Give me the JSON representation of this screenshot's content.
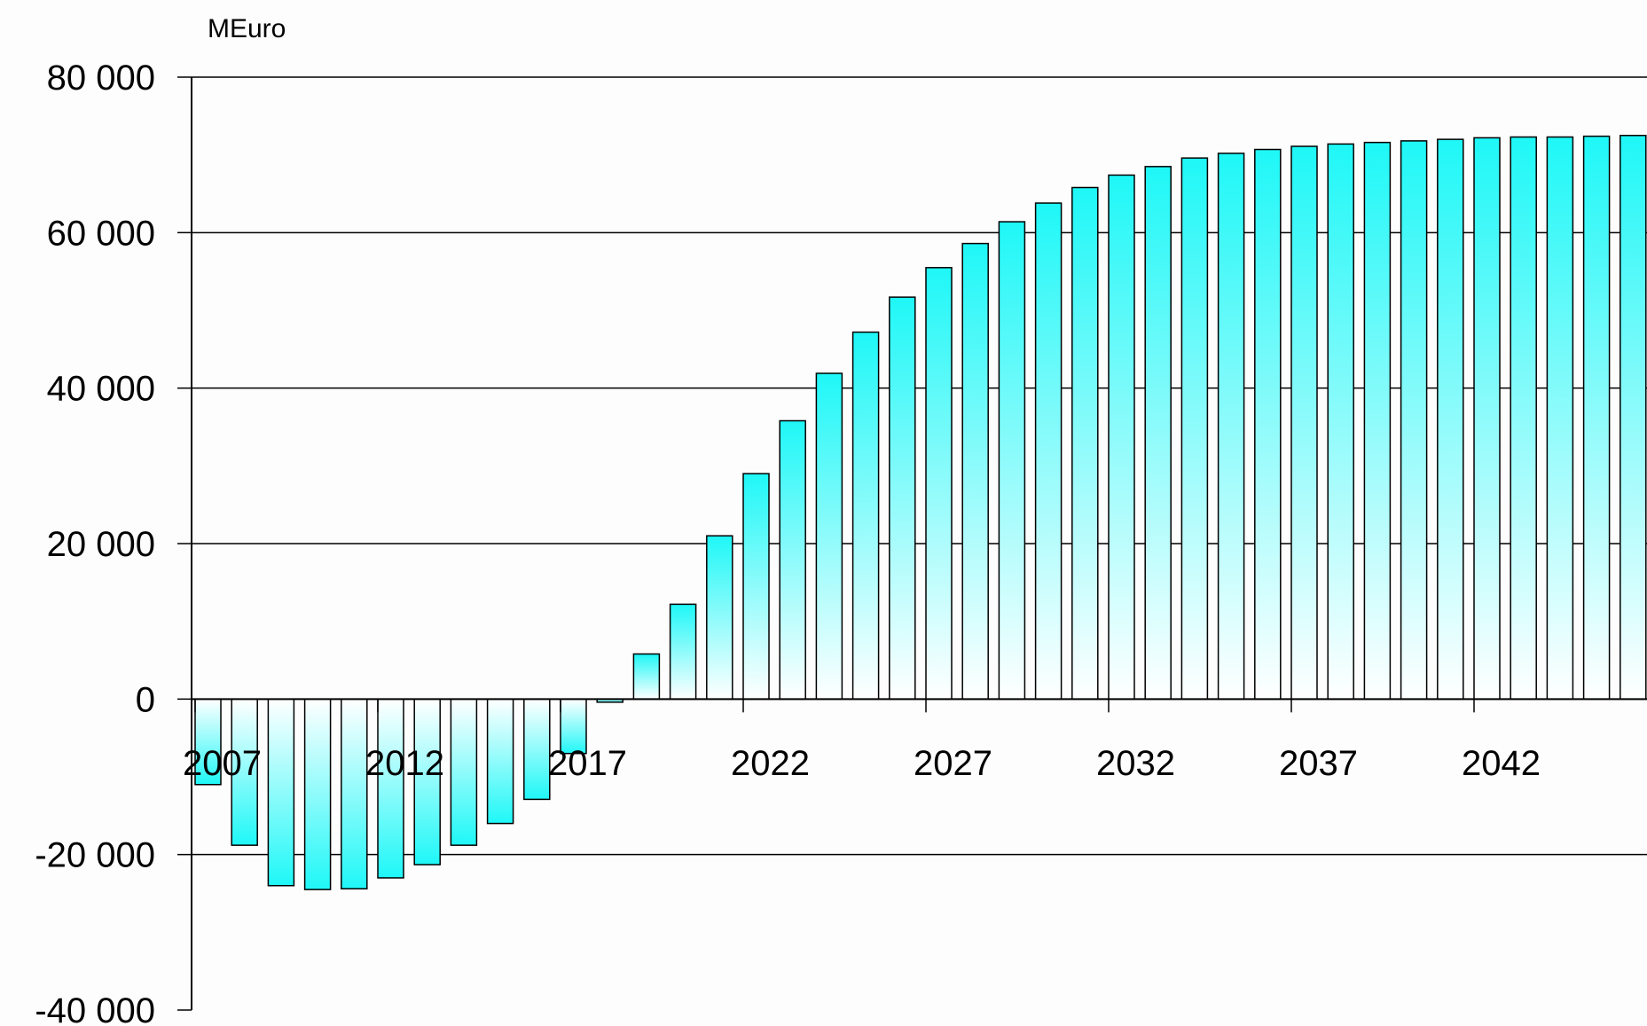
{
  "chart_data": {
    "type": "bar",
    "unit_label": "MEuro",
    "ylim": [
      -40000,
      80000
    ],
    "y_ticks": [
      80000,
      60000,
      40000,
      20000,
      0,
      -20000,
      -40000
    ],
    "y_tick_labels": [
      "80 000",
      "60 000",
      "40 000",
      "20 000",
      "0",
      "-20 000",
      "-40 000"
    ],
    "x_tick_years": [
      2007,
      2012,
      2017,
      2022,
      2027,
      2032,
      2037,
      2042
    ],
    "x_tick_labels": [
      "2007",
      "2012",
      "2017",
      "2022",
      "2027",
      "2032",
      "2037",
      "2042"
    ],
    "grid": true,
    "categories": [
      2007,
      2008,
      2009,
      2010,
      2011,
      2012,
      2013,
      2014,
      2015,
      2016,
      2017,
      2018,
      2019,
      2020,
      2021,
      2022,
      2023,
      2024,
      2025,
      2026,
      2027,
      2028,
      2029,
      2030,
      2031,
      2032,
      2033,
      2034,
      2035,
      2036,
      2037,
      2038,
      2039,
      2040,
      2041,
      2042,
      2043,
      2044,
      2045,
      2046,
      2047,
      2048
    ],
    "values": [
      -11000,
      -18800,
      -24000,
      -24500,
      -24400,
      -23000,
      -21300,
      -18800,
      -16000,
      -12900,
      -7000,
      -400,
      5800,
      12200,
      21000,
      29000,
      35800,
      41900,
      47200,
      51700,
      55500,
      58600,
      61400,
      63800,
      65800,
      67400,
      68500,
      69600,
      70200,
      70700,
      71100,
      71400,
      71600,
      71800,
      72000,
      72200,
      72300,
      72300,
      72400,
      72500,
      72500,
      72500
    ],
    "colors": {
      "bar_top": "#1ff7f7",
      "bar_bottom": "#ffffff",
      "bar_stroke": "#000000",
      "grid": "#000000",
      "background": "#fdfdfd"
    }
  }
}
